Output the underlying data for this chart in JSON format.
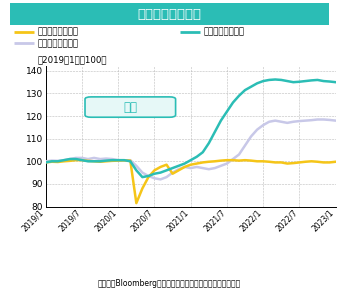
{
  "title": "鉱工業生産と在庫",
  "title_bg": "#2bbdb5",
  "subtitle_line1": "（2019年1月＝100）",
  "xlabel_bottom": "（出所：Bloombergより住友商事グローバルリサーチ作成）",
  "annotation": "米国",
  "legend": [
    {
      "label": "米国　鉱工業生産",
      "color": "#f5c518",
      "lw": 1.8
    },
    {
      "label": "卸売在庫（名目）",
      "color": "#2bbdb5",
      "lw": 1.8
    },
    {
      "label": "小売在庫（名目）",
      "color": "#c8c8e8",
      "lw": 1.8
    }
  ],
  "ylim": [
    80,
    142
  ],
  "yticks": [
    80,
    90,
    100,
    110,
    120,
    130,
    140
  ],
  "xtick_labels": [
    "2019/1",
    "2019/7",
    "2020/1",
    "2020/7",
    "2021/1",
    "2021/7",
    "2022/1",
    "2022/7",
    "2023/1"
  ],
  "production": [
    99.5,
    99.8,
    99.7,
    100.0,
    100.2,
    100.5,
    100.5,
    100.2,
    100.0,
    99.8,
    100.0,
    100.2,
    100.3,
    100.4,
    100.3,
    81.5,
    88.0,
    93.0,
    96.0,
    97.5,
    98.5,
    94.5,
    96.0,
    97.5,
    98.5,
    99.0,
    99.5,
    99.8,
    100.0,
    100.3,
    100.5,
    100.5,
    100.3,
    100.5,
    100.3,
    100.0,
    100.0,
    99.8,
    99.5,
    99.5,
    99.0,
    99.2,
    99.5,
    99.8,
    100.0,
    99.8,
    99.5,
    99.5,
    99.8
  ],
  "wholesale": [
    99.5,
    100.0,
    100.0,
    100.5,
    101.0,
    101.0,
    100.5,
    100.0,
    100.0,
    100.0,
    100.3,
    100.5,
    100.5,
    100.5,
    100.0,
    96.0,
    93.0,
    93.5,
    94.5,
    95.0,
    96.0,
    97.0,
    98.0,
    99.0,
    100.5,
    102.0,
    104.0,
    108.0,
    113.0,
    118.0,
    122.0,
    126.0,
    129.0,
    131.5,
    133.0,
    134.5,
    135.5,
    136.0,
    136.2,
    136.0,
    135.5,
    135.0,
    135.2,
    135.5,
    135.8,
    136.0,
    135.5,
    135.3,
    135.0
  ],
  "retail": [
    100.0,
    100.3,
    100.2,
    100.5,
    101.0,
    101.5,
    101.5,
    101.0,
    101.5,
    101.0,
    101.2,
    101.0,
    100.5,
    100.3,
    100.5,
    98.0,
    95.0,
    93.5,
    92.5,
    92.0,
    93.0,
    95.0,
    96.5,
    97.5,
    97.0,
    97.5,
    97.0,
    96.5,
    97.0,
    98.0,
    99.0,
    101.0,
    103.0,
    107.0,
    111.0,
    114.0,
    116.0,
    117.5,
    118.0,
    117.5,
    117.0,
    117.5,
    117.8,
    118.0,
    118.2,
    118.5,
    118.5,
    118.3,
    118.0
  ],
  "n_points": 49
}
